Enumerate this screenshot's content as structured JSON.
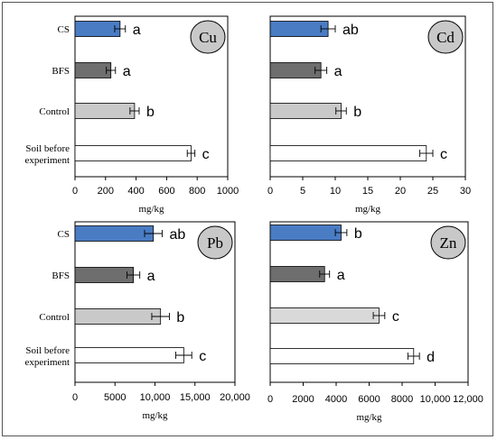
{
  "figure": {
    "categories": [
      "CS",
      "BFS",
      "Control",
      "Soil before experiment"
    ]
  },
  "chart_data": [
    {
      "type": "bar",
      "orientation": "horizontal",
      "element": "Cu",
      "categories": [
        "CS",
        "BFS",
        "Control",
        "Soil before experiment"
      ],
      "values": [
        295,
        235,
        390,
        760
      ],
      "errors": [
        35,
        30,
        30,
        25
      ],
      "letters": [
        "a",
        "a",
        "b",
        "c"
      ],
      "colors": [
        "#4a7cc4",
        "#6e6e6e",
        "#c9c9c9",
        "#ffffff"
      ],
      "xlim": [
        0,
        1000
      ],
      "xticks": [
        0,
        200,
        400,
        600,
        800,
        1000
      ],
      "xticklabels": [
        "0",
        "200",
        "400",
        "600",
        "800",
        "1000"
      ],
      "xlabel": "mg/kg"
    },
    {
      "type": "bar",
      "orientation": "horizontal",
      "element": "Cd",
      "categories": [
        "CS",
        "BFS",
        "Control",
        "Soil before experiment"
      ],
      "values": [
        8.9,
        7.8,
        10.9,
        24.0
      ],
      "errors": [
        1.1,
        0.9,
        0.8,
        1.0
      ],
      "letters": [
        "ab",
        "a",
        "b",
        "c"
      ],
      "colors": [
        "#4a7cc4",
        "#6e6e6e",
        "#c9c9c9",
        "#ffffff"
      ],
      "xlim": [
        0,
        30
      ],
      "xticks": [
        0,
        5,
        10,
        15,
        20,
        25,
        30
      ],
      "xticklabels": [
        "0",
        "5",
        "10",
        "15",
        "20",
        "25",
        "30"
      ],
      "xlabel": "mg/kg"
    },
    {
      "type": "bar",
      "orientation": "horizontal",
      "element": "Pb",
      "categories": [
        "CS",
        "BFS",
        "Control",
        "Soil before experiment"
      ],
      "values": [
        9800,
        7300,
        10700,
        13600
      ],
      "errors": [
        1100,
        800,
        1100,
        1000
      ],
      "letters": [
        "ab",
        "a",
        "b",
        "c"
      ],
      "colors": [
        "#4a7cc4",
        "#6e6e6e",
        "#c9c9c9",
        "#ffffff"
      ],
      "xlim": [
        0,
        20000
      ],
      "xticks": [
        0,
        5000,
        10000,
        15000,
        20000
      ],
      "xticklabels": [
        "0",
        "5000",
        "10,000",
        "15,000",
        "20,000"
      ],
      "xlabel": "mg/kg"
    },
    {
      "type": "bar",
      "orientation": "horizontal",
      "element": "Zn",
      "categories": [
        "CS",
        "BFS",
        "Control",
        "Soil before experiment"
      ],
      "values": [
        4300,
        3300,
        6600,
        8700
      ],
      "errors": [
        350,
        300,
        350,
        350
      ],
      "letters": [
        "b",
        "a",
        "c",
        "d"
      ],
      "colors": [
        "#4a7cc4",
        "#6e6e6e",
        "#d9d9d9",
        "#ffffff"
      ],
      "xlim": [
        0,
        12000
      ],
      "xticks": [
        0,
        2000,
        4000,
        6000,
        8000,
        10000,
        12000
      ],
      "xticklabels": [
        "0",
        "2000",
        "4000",
        "6000",
        "8000",
        "10,000",
        "12,000"
      ],
      "xlabel": "mg/kg"
    }
  ]
}
